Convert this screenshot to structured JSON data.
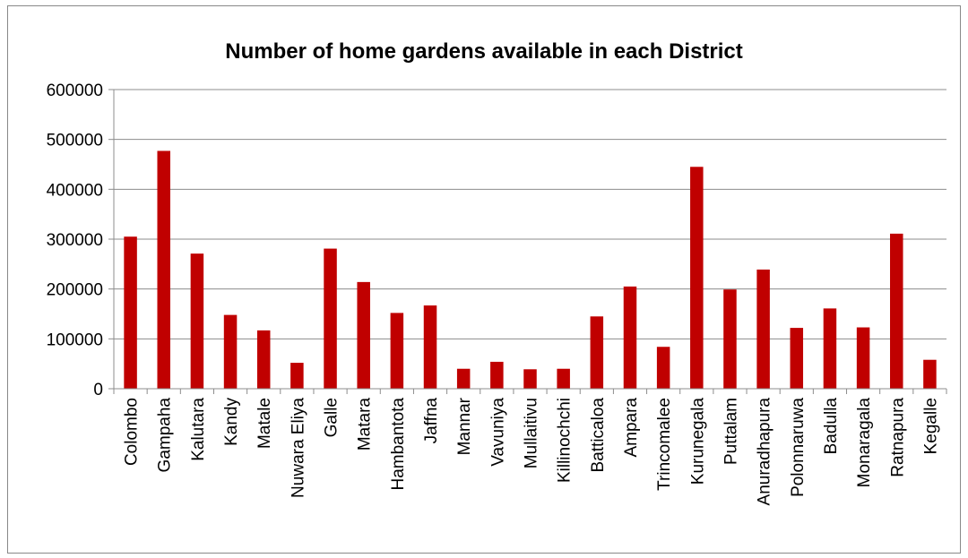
{
  "chart_data": {
    "type": "bar",
    "title": "Number of home gardens available in each District",
    "xlabel": "",
    "ylabel": "",
    "ylim": [
      0,
      600000
    ],
    "yticks": [
      0,
      100000,
      200000,
      300000,
      400000,
      500000,
      600000
    ],
    "ytick_labels": [
      "0",
      "100000",
      "200000",
      "300000",
      "400000",
      "500000",
      "600000"
    ],
    "grid": true,
    "legend": "none",
    "bar_color": "#c00000",
    "categories": [
      "Colombo",
      "Gampaha",
      "Kalutara",
      "Kandy",
      "Matale",
      "Nuwara Eliya",
      "Galle",
      "Matara",
      "Hambantota",
      "Jaffna",
      "Mannar",
      "Vavuniya",
      "Mullaitivu",
      "Killinochchi",
      "Batticaloa",
      "Ampara",
      "Trincomalee",
      "Kurunegala",
      "Puttalam",
      "Anuradhapura",
      "Polonnaruwa",
      "Badulla",
      "Monaragala",
      "Ratnapura",
      "Kegalle"
    ],
    "values": [
      305000,
      477000,
      271000,
      148000,
      117000,
      52000,
      281000,
      214000,
      152000,
      167000,
      40000,
      54000,
      39000,
      40000,
      145000,
      205000,
      84000,
      445000,
      199000,
      239000,
      122000,
      161000,
      123000,
      311000,
      58000
    ]
  }
}
